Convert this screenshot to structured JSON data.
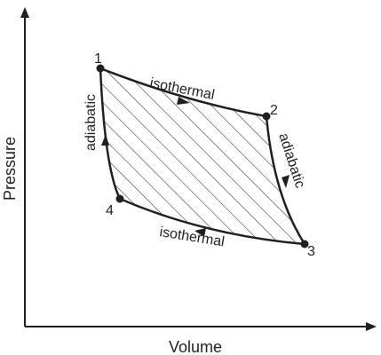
{
  "axes": {
    "x_label": "Volume",
    "y_label": "Pressure"
  },
  "points": [
    {
      "id": "1",
      "label": "1"
    },
    {
      "id": "2",
      "label": "2"
    },
    {
      "id": "3",
      "label": "3"
    },
    {
      "id": "4",
      "label": "4"
    }
  ],
  "processes": [
    {
      "from": "1",
      "to": "2",
      "label": "isothermal"
    },
    {
      "from": "2",
      "to": "3",
      "label": "adiabatic"
    },
    {
      "from": "3",
      "to": "4",
      "label": "isothermal"
    },
    {
      "from": "4",
      "to": "1",
      "label": "adiabatic"
    }
  ],
  "enclosed_area": {
    "fill": "hatched"
  },
  "colors": {
    "ink": "#231f20",
    "background": "#ffffff"
  }
}
